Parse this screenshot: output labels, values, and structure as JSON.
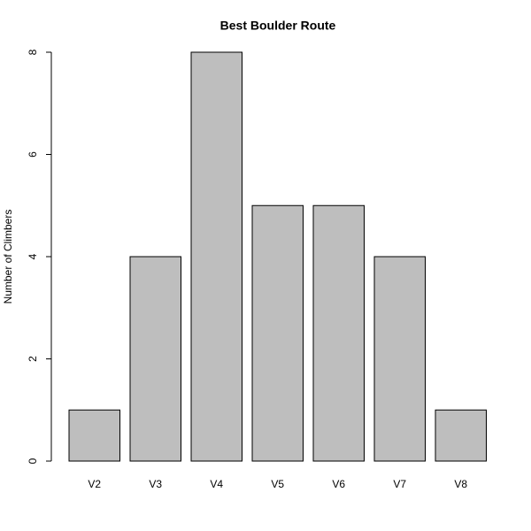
{
  "chart_data": {
    "type": "bar",
    "title": "Best Boulder Route",
    "y_label": "Number of Climbers",
    "categories": [
      "V2",
      "V3",
      "V4",
      "V5",
      "V6",
      "V7",
      "V8"
    ],
    "values": [
      1,
      4,
      8,
      5,
      5,
      4,
      1
    ],
    "color": "#bebebe",
    "ylim": [
      0,
      8
    ],
    "yticks": [
      0,
      2,
      4,
      6,
      8
    ]
  }
}
